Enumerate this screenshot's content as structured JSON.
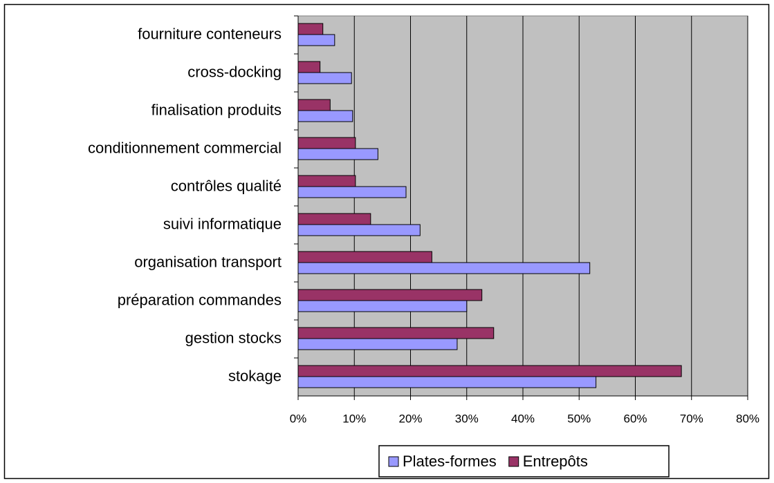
{
  "chart_data": {
    "type": "bar",
    "orientation": "horizontal",
    "categories": [
      "stokage",
      "gestion stocks",
      "préparation commandes",
      "organisation transport",
      "suivi informatique",
      "contrôles qualité",
      "conditionnement commercial",
      "finalisation produits",
      "cross-docking",
      "fourniture conteneurs"
    ],
    "series": [
      {
        "name": "Plates-formes",
        "color": "#9999ff",
        "values": [
          53,
          28.3,
          30,
          51.9,
          21.7,
          19.2,
          14.2,
          9.7,
          9.5,
          6.5
        ]
      },
      {
        "name": "Entrepôts",
        "color": "#993366",
        "values": [
          68.2,
          34.8,
          32.7,
          23.8,
          12.9,
          10.2,
          10.2,
          5.7,
          3.9,
          4.4
        ]
      }
    ],
    "xlim": [
      0,
      80
    ],
    "xticks": [
      {
        "value": 0,
        "label": "0%"
      },
      {
        "value": 10,
        "label": "10%"
      },
      {
        "value": 20,
        "label": "20%"
      },
      {
        "value": 30,
        "label": "30%"
      },
      {
        "value": 40,
        "label": "40%"
      },
      {
        "value": 50,
        "label": "50%"
      },
      {
        "value": 60,
        "label": "60%"
      },
      {
        "value": 70,
        "label": "70%"
      },
      {
        "value": 80,
        "label": "80%"
      }
    ],
    "grid": true,
    "plot_background": "#c0c0c0",
    "legend": "bottom"
  }
}
